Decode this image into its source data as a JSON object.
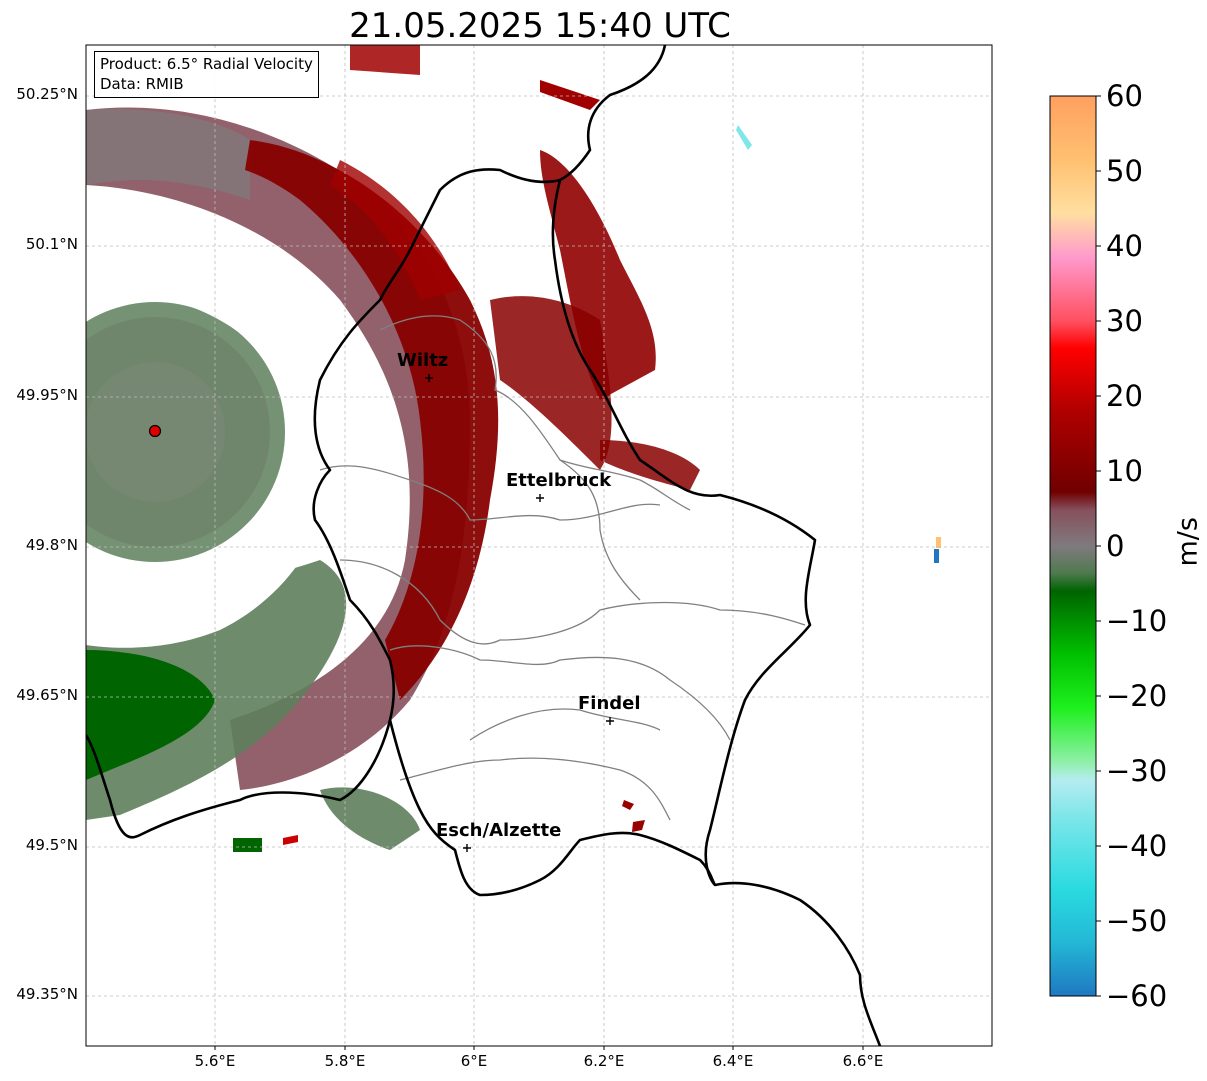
{
  "title": "21.05.2025 15:40 UTC",
  "info": {
    "product": "Product: 6.5° Radial Velocity",
    "data_source": "Data: RMIB"
  },
  "axes": {
    "lat_ticks": [
      "50.25°N",
      "50.1°N",
      "49.95°N",
      "49.8°N",
      "49.65°N",
      "49.5°N",
      "49.35°N"
    ],
    "lon_ticks": [
      "5.6°E",
      "5.8°E",
      "6°E",
      "6.2°E",
      "6.4°E",
      "6.6°E"
    ],
    "grid": true,
    "lat_range": [
      49.3,
      50.3
    ],
    "lon_range": [
      5.4,
      6.8
    ]
  },
  "cities": [
    {
      "name": "Wiltz",
      "lon": 5.93,
      "lat": 49.967
    },
    {
      "name": "Ettelbruck",
      "lon": 6.1,
      "lat": 49.85
    },
    {
      "name": "Findel",
      "lon": 6.21,
      "lat": 49.627
    },
    {
      "name": "Esch/Alzette",
      "lon": 5.98,
      "lat": 49.5
    }
  ],
  "radar_site": {
    "lon": 5.505,
    "lat": 49.915
  },
  "colorbar": {
    "unit": "m/s",
    "ticks": [
      "60",
      "50",
      "40",
      "30",
      "20",
      "10",
      "0",
      "−10",
      "−20",
      "−30",
      "−40",
      "−50",
      "−60"
    ],
    "range": [
      -60,
      60
    ],
    "colors": {
      "low": "#1f78c1",
      "cyan": "#2adbe0",
      "light_cyan": "#b5ecf0",
      "light_green": "#8ff0a8",
      "bright_green": "#00e000",
      "green": "#00a000",
      "dark_green": "#006400",
      "grey_green": "#5e7f5c",
      "neutral": "#807a7e",
      "mauve": "#86505c",
      "dark_red": "#800000",
      "red": "#e00000",
      "bright_red": "#ff0000",
      "pink": "#ff6680",
      "light_pink": "#ff99cc",
      "pale": "#ffdfa0",
      "peach": "#ffc070",
      "orange": "#ffa060"
    }
  }
}
